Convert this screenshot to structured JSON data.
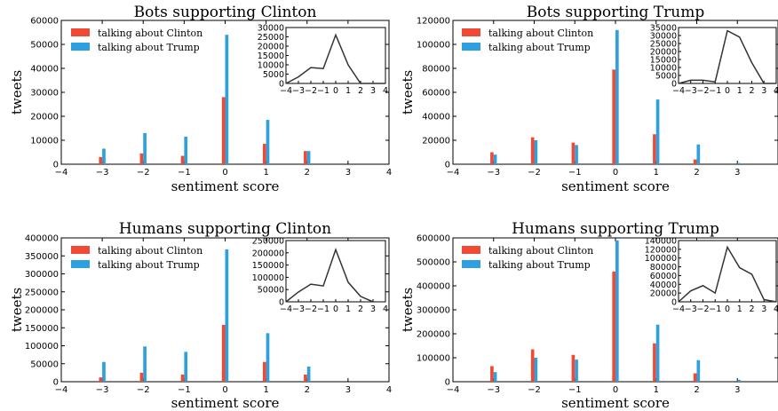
{
  "colors": {
    "clinton": "#f04a35",
    "trump": "#2e9fdf",
    "inset_line": "#333333"
  },
  "chart_data": [
    {
      "type": "bar",
      "title": "Bots supporting Clinton",
      "xlabel": "sentiment score",
      "ylabel": "tweets",
      "xlim": [
        -4,
        4
      ],
      "ylim": [
        0,
        60000
      ],
      "xticks": [
        "−4",
        "−3",
        "−2",
        "−1",
        "0",
        "1",
        "2",
        "3",
        "4"
      ],
      "yticks": [
        "0",
        "10000",
        "20000",
        "30000",
        "40000",
        "50000",
        "60000"
      ],
      "legend": {
        "position": "top-left",
        "entries": [
          "talking about Clinton",
          "talking about Trump"
        ]
      },
      "categories": [
        -3,
        -2,
        -1,
        0,
        1,
        2
      ],
      "series": [
        {
          "name": "talking about Clinton",
          "values": [
            3000,
            4500,
            3500,
            28000,
            8500,
            5500
          ]
        },
        {
          "name": "talking about Trump",
          "values": [
            6500,
            13000,
            11500,
            54000,
            18500,
            5500
          ]
        }
      ],
      "inset": {
        "type": "line",
        "x": [
          -4,
          -3,
          -2,
          -1,
          0,
          1,
          2,
          3,
          4
        ],
        "y": [
          0,
          3500,
          8500,
          8000,
          26000,
          10000,
          0,
          0,
          0
        ],
        "xlim": [
          -4,
          4
        ],
        "ylim": [
          0,
          30000
        ],
        "xticks": [
          "−4",
          "−3",
          "−2",
          "−1",
          "0",
          "1",
          "2",
          "3",
          "4"
        ],
        "yticks": [
          "0",
          "5000",
          "10000",
          "15000",
          "20000",
          "25000",
          "30000"
        ]
      }
    },
    {
      "type": "bar",
      "title": "Bots supporting Trump",
      "xlabel": "sentiment score",
      "ylabel": "tweets",
      "xlim": [
        -4,
        4
      ],
      "ylim": [
        0,
        120000
      ],
      "xticks": [
        "−4",
        "−3",
        "−2",
        "−1",
        "0",
        "1",
        "2",
        "3"
      ],
      "yticks": [
        "0",
        "20000",
        "40000",
        "60000",
        "80000",
        "100000",
        "120000"
      ],
      "legend": {
        "position": "top-left",
        "entries": [
          "talking about Clinton",
          "talking about Trump"
        ]
      },
      "categories": [
        -3,
        -2,
        -1,
        0,
        1,
        2,
        3
      ],
      "series": [
        {
          "name": "talking about Clinton",
          "values": [
            10000,
            22500,
            18000,
            79000,
            25000,
            4000,
            0
          ]
        },
        {
          "name": "talking about Trump",
          "values": [
            8000,
            20000,
            16000,
            112000,
            54000,
            16500,
            1000
          ]
        }
      ],
      "inset": {
        "type": "line",
        "x": [
          -4,
          -3,
          -2,
          -1,
          0,
          1,
          2,
          3,
          4
        ],
        "y": [
          0,
          2000,
          2000,
          1000,
          33000,
          29000,
          13000,
          0,
          0
        ],
        "xlim": [
          -4,
          4
        ],
        "ylim": [
          0,
          35000
        ],
        "xticks": [
          "−4",
          "−3",
          "−2",
          "−1",
          "0",
          "1",
          "2",
          "3",
          "4"
        ],
        "yticks": [
          "0",
          "5000",
          "10000",
          "15000",
          "20000",
          "25000",
          "30000",
          "35000"
        ]
      }
    },
    {
      "type": "bar",
      "title": "Humans supporting Clinton",
      "xlabel": "sentiment score",
      "ylabel": "tweets",
      "xlim": [
        -4,
        4
      ],
      "ylim": [
        0,
        400000
      ],
      "xticks": [
        "−4",
        "−3",
        "−2",
        "−1",
        "0",
        "1",
        "2",
        "3",
        "4"
      ],
      "yticks": [
        "0",
        "50000",
        "100000",
        "150000",
        "200000",
        "250000",
        "300000",
        "350000",
        "400000"
      ],
      "legend": {
        "position": "top-left",
        "entries": [
          "talking about Clinton",
          "talking about Trump"
        ]
      },
      "categories": [
        -3,
        -2,
        -1,
        0,
        1,
        2
      ],
      "series": [
        {
          "name": "talking about Clinton",
          "values": [
            12000,
            25000,
            20000,
            158000,
            55000,
            20000
          ]
        },
        {
          "name": "talking about Trump",
          "values": [
            55000,
            98000,
            83000,
            368000,
            135000,
            42000
          ]
        }
      ],
      "inset": {
        "type": "line",
        "x": [
          -4,
          -3,
          -2,
          -1,
          0,
          1,
          2,
          3
        ],
        "y": [
          0,
          40000,
          72000,
          65000,
          213000,
          80000,
          22000,
          0
        ],
        "xlim": [
          -4,
          4
        ],
        "ylim": [
          0,
          250000
        ],
        "xticks": [
          "−4",
          "−3",
          "−2",
          "−1",
          "0",
          "1",
          "2",
          "3",
          "4"
        ],
        "yticks": [
          "0",
          "50000",
          "100000",
          "150000",
          "200000",
          "250000"
        ]
      }
    },
    {
      "type": "bar",
      "title": "Humans supporting Trump",
      "xlabel": "sentiment score",
      "ylabel": "tweets",
      "xlim": [
        -4,
        4
      ],
      "ylim": [
        0,
        600000
      ],
      "xticks": [
        "−4",
        "−3",
        "−2",
        "−1",
        "0",
        "1",
        "2",
        "3"
      ],
      "yticks": [
        "0",
        "100000",
        "200000",
        "300000",
        "400000",
        "500000",
        "600000"
      ],
      "legend": {
        "position": "top-left",
        "entries": [
          "talking about Clinton",
          "talking about Trump"
        ]
      },
      "categories": [
        -3,
        -2,
        -1,
        0,
        1,
        2,
        3
      ],
      "series": [
        {
          "name": "talking about Clinton",
          "values": [
            65000,
            135000,
            112000,
            460000,
            160000,
            35000,
            0
          ]
        },
        {
          "name": "talking about Trump",
          "values": [
            40000,
            100000,
            92000,
            590000,
            238000,
            90000,
            8000
          ]
        }
      ],
      "inset": {
        "type": "line",
        "x": [
          -4,
          -3,
          -2,
          -1,
          0,
          1,
          2,
          3,
          4
        ],
        "y": [
          0,
          25000,
          37000,
          20000,
          125000,
          78000,
          63000,
          5000,
          0
        ],
        "xlim": [
          -4,
          4
        ],
        "ylim": [
          0,
          140000
        ],
        "xticks": [
          "−4",
          "−3",
          "−2",
          "−1",
          "0",
          "1",
          "2",
          "3",
          "4"
        ],
        "yticks": [
          "0",
          "20000",
          "40000",
          "60000",
          "80000",
          "100000",
          "120000",
          "140000"
        ]
      }
    }
  ]
}
